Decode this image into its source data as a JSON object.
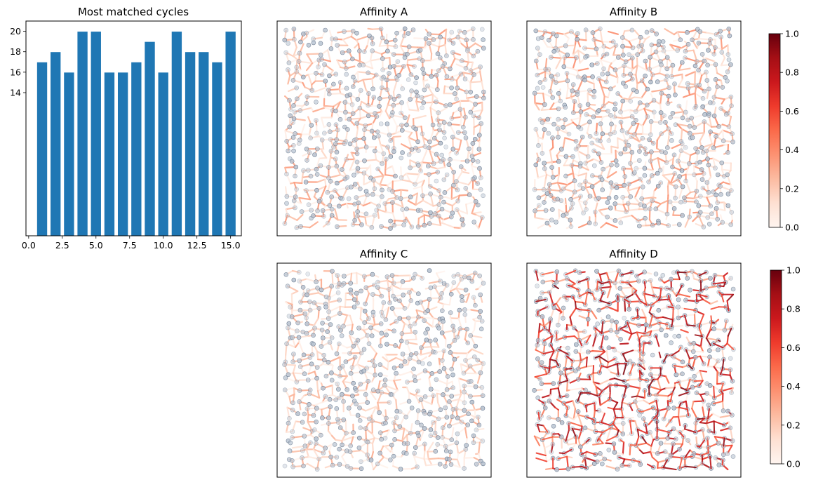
{
  "chart_data": [
    {
      "type": "bar",
      "title": "Most matched cycles",
      "x": [
        1,
        2,
        3,
        4,
        5,
        6,
        7,
        8,
        9,
        10,
        11,
        12,
        13,
        14,
        15
      ],
      "values": [
        17,
        18,
        16,
        20,
        20,
        16,
        16,
        17,
        19,
        16,
        20,
        18,
        18,
        17,
        20
      ],
      "xlim": [
        -0.2,
        15.8
      ],
      "ylim": [
        0,
        21
      ],
      "xticks": [
        "0.0",
        "2.5",
        "5.0",
        "7.5",
        "10.0",
        "12.5",
        "15.0"
      ],
      "xtick_values": [
        0,
        2.5,
        5,
        7.5,
        10,
        12.5,
        15
      ],
      "yticks": [
        "14",
        "16",
        "18",
        "20"
      ],
      "ytick_values": [
        14,
        16,
        18,
        20
      ],
      "color": "#1f77b4",
      "edgecolor": "#ffffff",
      "grid": false
    },
    {
      "type": "scatter",
      "title": "Affinity A",
      "colormap": "Reds",
      "max_intensity": 0.35,
      "strong_fraction": 0.0,
      "seed": 11
    },
    {
      "type": "scatter",
      "title": "Affinity B",
      "colormap": "Reds",
      "max_intensity": 0.4,
      "strong_fraction": 0.0,
      "seed": 23
    },
    {
      "type": "scatter",
      "title": "Affinity C",
      "colormap": "Reds",
      "max_intensity": 0.3,
      "strong_fraction": 0.0,
      "seed": 37
    },
    {
      "type": "scatter",
      "title": "Affinity D",
      "colormap": "Reds",
      "max_intensity": 0.85,
      "strong_fraction": 0.35,
      "seed": 53
    },
    {
      "type": "colorbar",
      "colormap": "Reds",
      "ticks": [
        "0.0",
        "0.2",
        "0.4",
        "0.6",
        "0.8",
        "1.0"
      ],
      "tick_values": [
        0,
        0.2,
        0.4,
        0.6,
        0.8,
        1.0
      ]
    }
  ],
  "colors": {
    "bar": "#1f77b4",
    "node": "#b8c4d2",
    "node_edge": "#5a6a80",
    "reds_low": "#fff5f0",
    "reds_high": "#67000d"
  }
}
